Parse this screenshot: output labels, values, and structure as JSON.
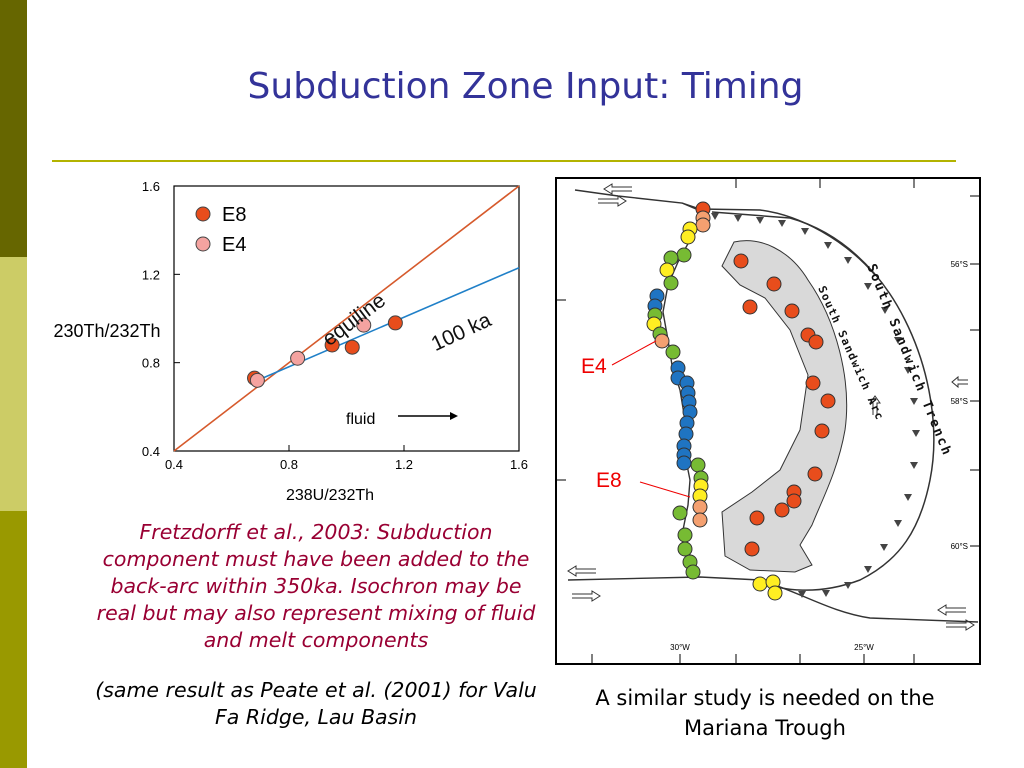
{
  "slide": {
    "title": "Subduction Zone Input: Timing",
    "caption": "Fretzdorff et al., 2003: Subduction component must have been added to the back-arc within 350ka. Isochron may be real but may also represent mixing of fluid and melt components",
    "note": "(same result as Peate et al. (2001) for Valu Fa Ridge, Lau Basin",
    "map_caption": "A similar study is needed on the Mariana Trough",
    "colors": {
      "title": "#333399",
      "caption": "#990033",
      "rule": "#b3b300",
      "band_dark": "#666600",
      "band_light": "#cccc66",
      "band_mid": "#999900"
    }
  },
  "chart_data": {
    "type": "scatter",
    "title": "",
    "xlabel": "238U/232Th",
    "ylabel": "230Th/232Th",
    "xlim": [
      0.4,
      1.6
    ],
    "ylim": [
      0.4,
      1.6
    ],
    "xticks": [
      "0.4",
      "0.8",
      "1.2",
      "1.6"
    ],
    "yticks": [
      "0.4",
      "0.8",
      "1.2",
      "1.6"
    ],
    "grid": false,
    "legend": "top-left",
    "series": [
      {
        "name": "E8",
        "color": "#e84d1c",
        "x": [
          0.68,
          0.95,
          1.02,
          1.17
        ],
        "y": [
          0.73,
          0.88,
          0.87,
          0.98
        ]
      },
      {
        "name": "E4",
        "color": "#f4a3a0",
        "x": [
          0.69,
          0.83,
          1.06
        ],
        "y": [
          0.72,
          0.82,
          0.97
        ]
      }
    ],
    "lines": [
      {
        "name": "equiline",
        "color": "#d65a2c",
        "x": [
          0.4,
          1.6
        ],
        "y": [
          0.4,
          1.6
        ]
      },
      {
        "name": "100 ka",
        "color": "#2080c8",
        "x": [
          0.69,
          1.6
        ],
        "y": [
          0.72,
          1.23
        ]
      }
    ],
    "annotations": {
      "equiline": "equiline",
      "isochron": "100 ka",
      "fluid": "fluid"
    }
  },
  "map": {
    "labels": {
      "e4": "E4",
      "e8": "E8",
      "trench": "South Sandwich Trench",
      "arc": "South Sandwich Arc"
    },
    "lat_ticks": [
      "56°S",
      "58°S",
      "60°S"
    ],
    "lon_ticks": [
      "30°W",
      "25°W"
    ],
    "colors": {
      "red": "#e84d1c",
      "orange": "#f4a070",
      "yellow": "#ffee22",
      "green": "#77bb33",
      "blue": "#1f74c2",
      "arc_fill": "#d9d9d9"
    }
  }
}
